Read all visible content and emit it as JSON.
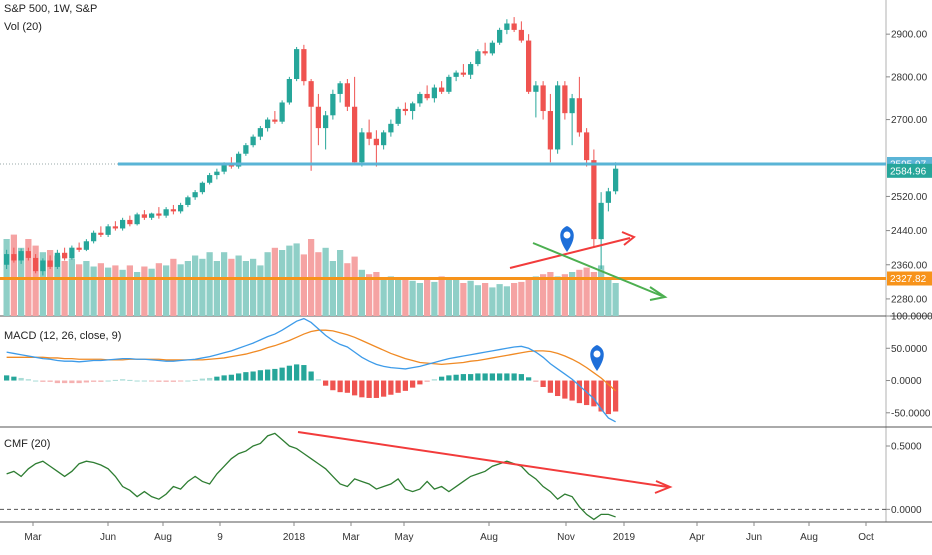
{
  "header": {
    "symbol": "S&P 500, 1W, S&P",
    "volume_label": "Vol (20)"
  },
  "macd_label": "MACD (12, 26, close, 9)",
  "cmf_label": "CMF (20)",
  "colors": {
    "up": "#26a69a",
    "down": "#ef5350",
    "vol_up": "#8fcfc7",
    "vol_down": "#f5a3a3",
    "macd_line": "#3d9be9",
    "signal_line": "#f08a24",
    "cmf_line": "#2e7d32",
    "hline_blue": "#5ab4d6",
    "hline_orange": "#f7931a",
    "trend_red": "#f23b3b",
    "trend_green": "#4caf50",
    "marker_blue": "#1e6fd9"
  },
  "chart_data": [
    {
      "type": "candlestick",
      "title": "S&P 500, 1W, S&P",
      "yaxis_ticks": [
        "2900.00",
        "2800.00",
        "2700.00",
        "2520.00",
        "2440.00",
        "2360.00",
        "2280.00"
      ],
      "price_tags": {
        "current": "2584.96",
        "resistance": "2595.97",
        "support": "2327.82"
      },
      "horizontal_lines": [
        2595.97,
        2327.82
      ],
      "ylim": [
        2240,
        2980
      ],
      "x_ticks": [
        "Mar",
        "Jun",
        "Aug",
        "9",
        "2018",
        "Mar",
        "May",
        "Aug",
        "Nov",
        "2019",
        "Apr",
        "Jun",
        "Aug",
        "Oct"
      ],
      "ohlc": [
        [
          2360,
          2395,
          2350,
          2385
        ],
        [
          2385,
          2400,
          2365,
          2370
        ],
        [
          2370,
          2398,
          2362,
          2392
        ],
        [
          2392,
          2400,
          2370,
          2376
        ],
        [
          2376,
          2385,
          2340,
          2345
        ],
        [
          2345,
          2375,
          2335,
          2370
        ],
        [
          2370,
          2382,
          2350,
          2355
        ],
        [
          2355,
          2395,
          2350,
          2388
        ],
        [
          2388,
          2400,
          2370,
          2375
        ],
        [
          2375,
          2405,
          2372,
          2400
        ],
        [
          2400,
          2412,
          2390,
          2395
        ],
        [
          2395,
          2420,
          2392,
          2415
        ],
        [
          2415,
          2440,
          2410,
          2435
        ],
        [
          2435,
          2450,
          2425,
          2430
        ],
        [
          2430,
          2455,
          2425,
          2450
        ],
        [
          2450,
          2462,
          2440,
          2445
        ],
        [
          2445,
          2470,
          2440,
          2465
        ],
        [
          2465,
          2475,
          2450,
          2455
        ],
        [
          2455,
          2482,
          2452,
          2478
        ],
        [
          2478,
          2488,
          2465,
          2470
        ],
        [
          2470,
          2482,
          2465,
          2480
        ],
        [
          2480,
          2495,
          2468,
          2475
        ],
        [
          2475,
          2495,
          2470,
          2490
        ],
        [
          2490,
          2500,
          2478,
          2485
        ],
        [
          2485,
          2505,
          2480,
          2500
        ],
        [
          2500,
          2522,
          2495,
          2518
        ],
        [
          2518,
          2535,
          2512,
          2530
        ],
        [
          2530,
          2555,
          2525,
          2552
        ],
        [
          2552,
          2575,
          2548,
          2570
        ],
        [
          2570,
          2585,
          2560,
          2578
        ],
        [
          2578,
          2600,
          2572,
          2595
        ],
        [
          2595,
          2612,
          2585,
          2590
        ],
        [
          2590,
          2625,
          2585,
          2620
        ],
        [
          2620,
          2645,
          2615,
          2640
        ],
        [
          2640,
          2665,
          2635,
          2660
        ],
        [
          2660,
          2685,
          2652,
          2680
        ],
        [
          2680,
          2705,
          2672,
          2700
        ],
        [
          2700,
          2720,
          2690,
          2695
        ],
        [
          2695,
          2745,
          2690,
          2740
        ],
        [
          2740,
          2800,
          2735,
          2795
        ],
        [
          2795,
          2870,
          2790,
          2865
        ],
        [
          2865,
          2875,
          2780,
          2790
        ],
        [
          2790,
          2795,
          2580,
          2730
        ],
        [
          2730,
          2760,
          2640,
          2680
        ],
        [
          2680,
          2720,
          2630,
          2710
        ],
        [
          2710,
          2770,
          2700,
          2760
        ],
        [
          2760,
          2790,
          2740,
          2785
        ],
        [
          2785,
          2795,
          2720,
          2730
        ],
        [
          2730,
          2800,
          2600,
          2600
        ],
        [
          2600,
          2680,
          2590,
          2670
        ],
        [
          2670,
          2700,
          2640,
          2655
        ],
        [
          2655,
          2675,
          2590,
          2640
        ],
        [
          2640,
          2675,
          2630,
          2670
        ],
        [
          2670,
          2700,
          2660,
          2690
        ],
        [
          2690,
          2730,
          2685,
          2725
        ],
        [
          2725,
          2740,
          2710,
          2720
        ],
        [
          2720,
          2742,
          2700,
          2738
        ],
        [
          2738,
          2765,
          2730,
          2760
        ],
        [
          2760,
          2780,
          2745,
          2750
        ],
        [
          2750,
          2782,
          2740,
          2775
        ],
        [
          2775,
          2790,
          2760,
          2765
        ],
        [
          2765,
          2805,
          2760,
          2800
        ],
        [
          2800,
          2815,
          2790,
          2810
        ],
        [
          2810,
          2830,
          2800,
          2805
        ],
        [
          2805,
          2835,
          2795,
          2830
        ],
        [
          2830,
          2865,
          2825,
          2860
        ],
        [
          2860,
          2880,
          2850,
          2855
        ],
        [
          2855,
          2885,
          2850,
          2880
        ],
        [
          2880,
          2915,
          2875,
          2910
        ],
        [
          2910,
          2935,
          2900,
          2925
        ],
        [
          2925,
          2940,
          2905,
          2910
        ],
        [
          2910,
          2930,
          2880,
          2885
        ],
        [
          2885,
          2900,
          2760,
          2765
        ],
        [
          2765,
          2790,
          2705,
          2780
        ],
        [
          2780,
          2790,
          2700,
          2720
        ],
        [
          2720,
          2760,
          2600,
          2630
        ],
        [
          2630,
          2790,
          2620,
          2780
        ],
        [
          2780,
          2790,
          2700,
          2715
        ],
        [
          2715,
          2760,
          2640,
          2750
        ],
        [
          2750,
          2800,
          2660,
          2670
        ],
        [
          2670,
          2680,
          2590,
          2605
        ],
        [
          2605,
          2630,
          2400,
          2420
        ],
        [
          2420,
          2530,
          2350,
          2505
        ],
        [
          2505,
          2540,
          2485,
          2532
        ],
        [
          2532,
          2600,
          2525,
          2585
        ]
      ]
    },
    {
      "type": "bar",
      "title": "Vol (20)",
      "values": [
        0.7,
        0.74,
        0.62,
        0.7,
        0.64,
        0.58,
        0.6,
        0.55,
        0.5,
        0.52,
        0.47,
        0.5,
        0.45,
        0.48,
        0.44,
        0.46,
        0.42,
        0.46,
        0.4,
        0.45,
        0.43,
        0.48,
        0.46,
        0.52,
        0.47,
        0.5,
        0.55,
        0.52,
        0.58,
        0.5,
        0.58,
        0.52,
        0.55,
        0.5,
        0.52,
        0.46,
        0.58,
        0.62,
        0.6,
        0.64,
        0.66,
        0.56,
        0.7,
        0.58,
        0.62,
        0.5,
        0.6,
        0.48,
        0.54,
        0.42,
        0.38,
        0.4,
        0.35,
        0.36,
        0.34,
        0.33,
        0.32,
        0.3,
        0.34,
        0.31,
        0.36,
        0.33,
        0.35,
        0.3,
        0.32,
        0.28,
        0.3,
        0.26,
        0.29,
        0.27,
        0.3,
        0.31,
        0.34,
        0.36,
        0.38,
        0.4,
        0.36,
        0.38,
        0.4,
        0.42,
        0.44,
        0.4,
        0.46,
        0.34,
        0.3
      ]
    },
    {
      "type": "line",
      "title": "MACD (12, 26, close, 9)",
      "yaxis_ticks": [
        "100.0000",
        "50.0000",
        "0.0000",
        "-50.0000"
      ],
      "ylim": [
        -72,
        100
      ],
      "series": [
        {
          "values": [
            44,
            42,
            40,
            38,
            36,
            34,
            33,
            31,
            30,
            30,
            29,
            30,
            31,
            31,
            32,
            33,
            34,
            34,
            33,
            33,
            32,
            31,
            30,
            30,
            31,
            32,
            33,
            35,
            37,
            40,
            43,
            46,
            50,
            54,
            58,
            63,
            68,
            72,
            78,
            85,
            92,
            96,
            90,
            80,
            70,
            62,
            56,
            52,
            44,
            36,
            30,
            25,
            22,
            20,
            19,
            18,
            20,
            22,
            25,
            28,
            31,
            34,
            36,
            38,
            40,
            42,
            44,
            46,
            48,
            50,
            52,
            53,
            50,
            44,
            36,
            26,
            18,
            10,
            2,
            -8,
            -18,
            -28,
            -44,
            -58,
            -64
          ]
        },
        {
          "values": [
            36,
            36,
            36,
            36,
            36,
            36,
            35,
            35,
            34,
            34,
            33,
            33,
            33,
            33,
            32,
            32,
            32,
            33,
            33,
            33,
            33,
            33,
            32,
            32,
            32,
            32,
            32,
            32,
            33,
            34,
            35,
            37,
            39,
            41,
            44,
            47,
            51,
            54,
            58,
            62,
            67,
            72,
            76,
            78,
            78,
            77,
            74,
            71,
            67,
            62,
            57,
            52,
            47,
            42,
            38,
            34,
            31,
            28,
            27,
            26,
            25,
            26,
            27,
            28,
            30,
            31,
            33,
            35,
            37,
            39,
            41,
            43,
            45,
            46,
            46,
            45,
            42,
            38,
            33,
            27,
            20,
            12,
            4,
            -6,
            -16
          ]
        }
      ]
    },
    {
      "type": "line",
      "title": "CMF (20)",
      "yaxis_ticks": [
        "0.5000",
        "0.0000"
      ],
      "ylim": [
        -0.1,
        0.65
      ],
      "values": [
        0.28,
        0.3,
        0.26,
        0.32,
        0.36,
        0.38,
        0.34,
        0.3,
        0.26,
        0.3,
        0.36,
        0.38,
        0.37,
        0.35,
        0.32,
        0.26,
        0.18,
        0.15,
        0.1,
        0.14,
        0.1,
        0.08,
        0.12,
        0.18,
        0.16,
        0.22,
        0.26,
        0.22,
        0.2,
        0.28,
        0.34,
        0.4,
        0.44,
        0.46,
        0.5,
        0.52,
        0.58,
        0.6,
        0.55,
        0.5,
        0.48,
        0.44,
        0.4,
        0.36,
        0.32,
        0.26,
        0.2,
        0.18,
        0.24,
        0.22,
        0.2,
        0.16,
        0.18,
        0.2,
        0.24,
        0.16,
        0.14,
        0.16,
        0.22,
        0.16,
        0.18,
        0.14,
        0.18,
        0.22,
        0.26,
        0.28,
        0.3,
        0.34,
        0.36,
        0.38,
        0.36,
        0.34,
        0.28,
        0.24,
        0.18,
        0.14,
        0.08,
        0.12,
        0.1,
        0.02,
        -0.04,
        -0.08,
        -0.04,
        -0.04,
        -0.06
      ]
    }
  ]
}
